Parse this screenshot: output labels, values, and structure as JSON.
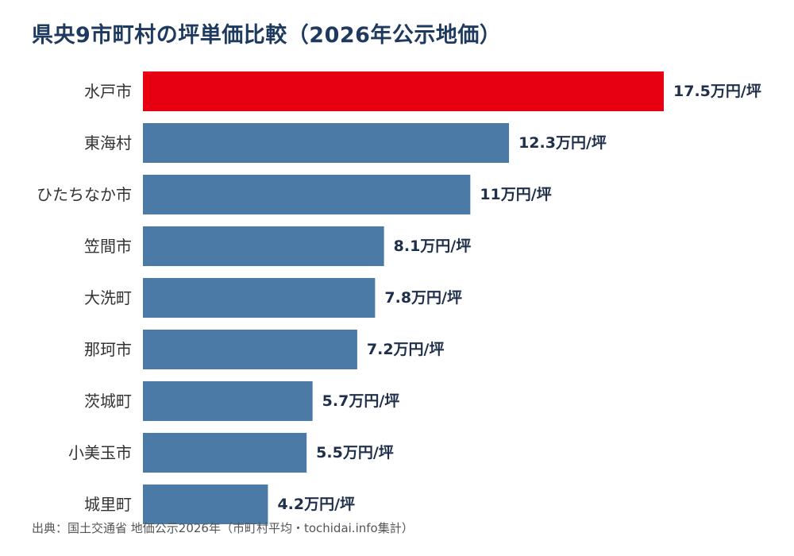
{
  "chart_data": {
    "type": "bar",
    "orientation": "horizontal",
    "title": "県央9市町村の坪単価比較（2026年公示地価）",
    "categories": [
      "水戸市",
      "東海村",
      "ひたちなか市",
      "笠間市",
      "大洗町",
      "那珂市",
      "茨城町",
      "小美玉市",
      "城里町"
    ],
    "values": [
      17.5,
      12.3,
      11,
      8.1,
      7.8,
      7.2,
      5.7,
      5.5,
      4.2
    ],
    "value_labels": [
      "17.5万円/坪",
      "12.3万円/坪",
      "11万円/坪",
      "8.1万円/坪",
      "7.8万円/坪",
      "7.2万円/坪",
      "5.7万円/坪",
      "5.5万円/坪",
      "4.2万円/坪"
    ],
    "highlight_index": 0,
    "colors": {
      "highlight": "#e60012",
      "default": "#4a7aa5",
      "title": "#1f3a5f",
      "value_label": "#1f2f4a"
    },
    "xlim": [
      0,
      17.5
    ],
    "grid": false,
    "legend": "none"
  },
  "source_note": "出典：国土交通省 地価公示2026年（市町村平均・tochidai.info集計）"
}
